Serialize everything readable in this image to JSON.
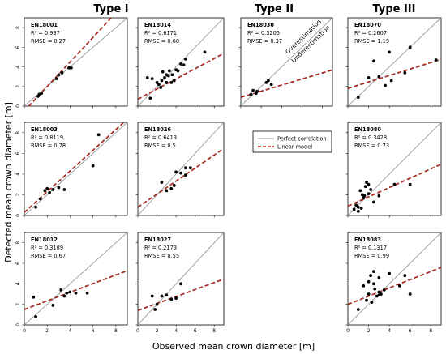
{
  "xlabel": "Observed mean crown diameter [m]",
  "ylabel": "Detected mean crown diameter [m]",
  "type_titles": [
    "Type I",
    "Type II",
    "Type III"
  ],
  "annotations": {
    "over": "Overestimation",
    "under": "Underestimation"
  },
  "legend": {
    "perfect": "Perfect correlation",
    "linear": "Linear model"
  },
  "colors": {
    "perfect": "#9a9a9a",
    "linear": "#cc2a1a",
    "points": "#000000"
  },
  "chart_data": {
    "type": "scatter",
    "xlim": [
      0,
      9
    ],
    "ylim": [
      0,
      9
    ],
    "ticks": [
      0,
      2,
      4,
      6,
      8
    ],
    "panels": [
      {
        "id": "EN18001",
        "r2": "R² = 0.937",
        "rmse": "RMSE = 0.27",
        "fit": {
          "slope": 1.25,
          "intercept": -0.5
        },
        "x": [
          1.2,
          1.3,
          1.5,
          2.8,
          3.0,
          3.3,
          3.9,
          4.1
        ],
        "y": [
          1.0,
          1.2,
          1.3,
          2.8,
          3.2,
          3.4,
          3.9,
          3.9
        ]
      },
      {
        "id": "EN18014",
        "r2": "R² = 0.6171",
        "rmse": "RMSE = 0.68",
        "fit": {
          "slope": 0.52,
          "intercept": 0.7
        },
        "x": [
          1.0,
          1.3,
          1.5,
          2.0,
          2.2,
          2.4,
          2.5,
          2.6,
          2.8,
          3.0,
          3.0,
          3.2,
          3.3,
          3.5,
          3.6,
          3.8,
          4.0,
          4.2,
          4.5,
          4.8,
          5.0,
          7.0
        ],
        "y": [
          2.9,
          0.8,
          2.8,
          2.4,
          2.2,
          1.9,
          2.6,
          3.5,
          2.9,
          3.2,
          2.4,
          3.1,
          3.6,
          2.4,
          3.2,
          2.6,
          3.7,
          3.6,
          4.3,
          4.2,
          4.8,
          5.5
        ]
      },
      {
        "id": "EN18030",
        "r2": "R² = 0.3205",
        "rmse": "RMSE = 0.37",
        "fit": {
          "slope": 0.31,
          "intercept": 0.9
        },
        "x": [
          1.0,
          1.2,
          1.5,
          1.6,
          2.5,
          2.7,
          3.0
        ],
        "y": [
          1.2,
          1.6,
          1.3,
          1.5,
          2.4,
          2.6,
          2.2
        ]
      },
      {
        "id": "EN18070",
        "r2": "R² = 0.2607",
        "rmse": "RMSE = 1.19",
        "fit": {
          "slope": 0.33,
          "intercept": 1.8
        },
        "x": [
          1.0,
          2.0,
          2.5,
          3.0,
          3.6,
          4.0,
          4.2,
          5.5,
          6.0,
          8.5
        ],
        "y": [
          0.9,
          2.9,
          4.6,
          3.0,
          2.1,
          5.5,
          2.6,
          3.4,
          6.0,
          4.7
        ]
      },
      {
        "id": "EN18003",
        "r2": "R² = 0.8119",
        "rmse": "RMSE = 0.78",
        "fit": {
          "slope": 1.0,
          "intercept": 0.3
        },
        "x": [
          1.0,
          1.4,
          1.8,
          2.0,
          2.2,
          2.5,
          3.0,
          3.5,
          6.0,
          6.5
        ],
        "y": [
          0.8,
          1.6,
          2.4,
          2.6,
          2.2,
          2.5,
          2.7,
          2.5,
          4.8,
          7.8
        ]
      },
      {
        "id": "EN18026",
        "r2": "R² = 0.6413",
        "rmse": "RMSE = 0.5",
        "fit": {
          "slope": 0.63,
          "intercept": 0.8
        },
        "x": [
          2.5,
          3.0,
          3.5,
          3.8,
          4.0,
          4.5,
          5.0,
          5.0,
          5.5
        ],
        "y": [
          3.2,
          2.4,
          2.6,
          2.9,
          4.2,
          4.1,
          4.6,
          3.9,
          4.6
        ]
      },
      {
        "id": "EN18080",
        "r2": "R² = 0.3428",
        "rmse": "RMSE = 0.73",
        "fit": {
          "slope": 0.45,
          "intercept": 0.9
        },
        "x": [
          0.6,
          0.8,
          1.0,
          1.0,
          1.2,
          1.3,
          1.4,
          1.5,
          1.6,
          1.7,
          1.8,
          2.0,
          2.0,
          2.2,
          2.5,
          3.0,
          4.5,
          6.0
        ],
        "y": [
          0.6,
          1.0,
          0.4,
          0.8,
          2.4,
          0.7,
          2.0,
          1.7,
          1.9,
          2.8,
          3.2,
          2.1,
          3.0,
          2.5,
          1.3,
          1.9,
          3.0,
          3.0
        ]
      },
      {
        "id": "EN18012",
        "r2": "R² = 0.3189",
        "rmse": "RMSE = 0.67",
        "fit": {
          "slope": 0.42,
          "intercept": 1.5
        },
        "x": [
          0.8,
          1.0,
          2.5,
          3.2,
          3.5,
          3.7,
          4.0,
          4.5,
          5.5
        ],
        "y": [
          2.7,
          0.8,
          1.9,
          3.4,
          2.8,
          3.1,
          3.2,
          3.1,
          3.1
        ]
      },
      {
        "id": "EN18027",
        "r2": "R² = 0.2173",
        "rmse": "RMSE = 0.55",
        "fit": {
          "slope": 0.34,
          "intercept": 1.4
        },
        "x": [
          1.5,
          1.8,
          2.0,
          2.5,
          3.0,
          3.5,
          4.0,
          4.5
        ],
        "y": [
          2.8,
          1.5,
          2.0,
          2.8,
          2.9,
          2.5,
          2.6,
          4.0
        ]
      },
      {
        "id": "EN18083",
        "r2": "R² = 0.1317",
        "rmse": "RMSE = 0.99",
        "fit": {
          "slope": 0.4,
          "intercept": 2.0
        },
        "x": [
          1.0,
          1.5,
          1.8,
          2.0,
          2.0,
          2.2,
          2.3,
          2.5,
          2.5,
          2.6,
          2.8,
          3.0,
          3.0,
          3.0,
          3.2,
          3.5,
          4.0,
          5.0,
          5.5,
          6.0
        ],
        "y": [
          1.5,
          3.8,
          2.4,
          4.2,
          3.0,
          4.8,
          2.2,
          4.0,
          5.2,
          3.5,
          2.8,
          2.9,
          4.6,
          3.2,
          3.0,
          3.4,
          5.0,
          3.8,
          4.8,
          3.0
        ]
      }
    ]
  }
}
